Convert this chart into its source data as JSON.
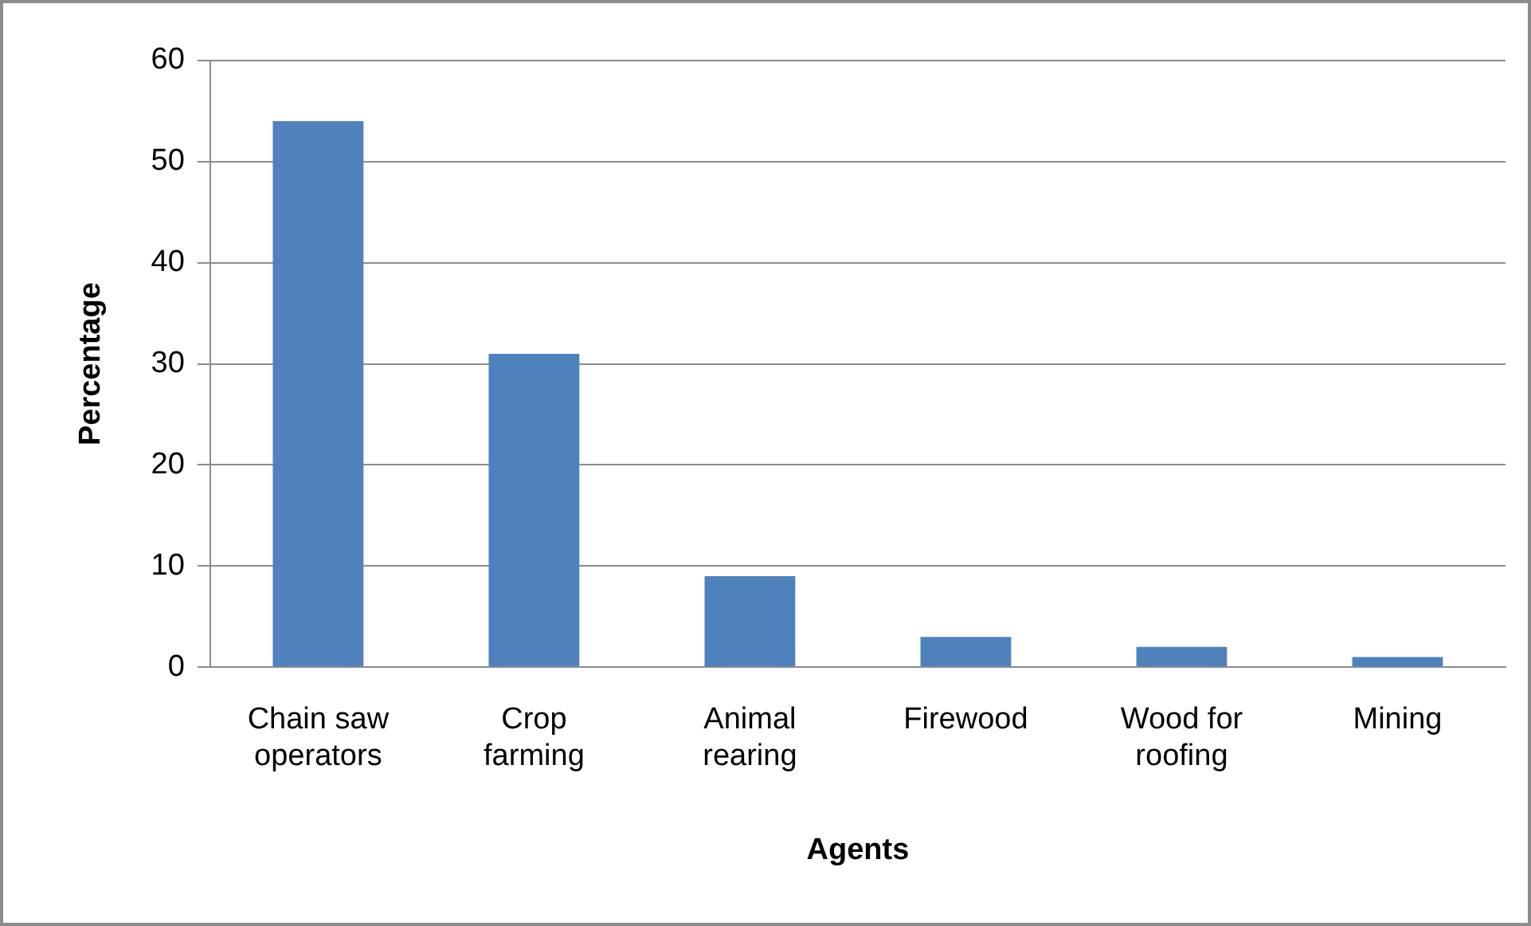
{
  "chart_data": {
    "type": "bar",
    "xlabel": "Agents",
    "ylabel": "Percentage",
    "categories": [
      "Chain saw operators",
      "Crop farming",
      "Animal rearing",
      "Firewood",
      "Wood for roofing",
      "Mining"
    ],
    "values": [
      54,
      31,
      9,
      3,
      2,
      1
    ],
    "color": "#4f81bd",
    "ylim": [
      0,
      60
    ],
    "yticks": [
      0,
      10,
      20,
      30,
      40,
      50,
      60
    ],
    "grid": "y",
    "legend": false
  }
}
